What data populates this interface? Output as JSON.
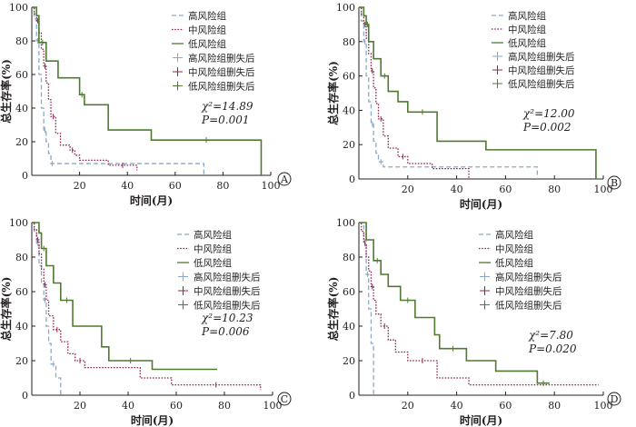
{
  "legend_labels": [
    "高风险组",
    "中风险组",
    "低风险组",
    "高风险组删失后",
    "中风险组删失后",
    "低风险组删失后"
  ],
  "colors": {
    "high": "#8aa8c8",
    "mid": "#8e2752",
    "low": "#4f7a2f",
    "axis": "#231f20"
  },
  "chart_data": [
    {
      "type": "line",
      "panel": "A",
      "xlabel": "时间(月)",
      "ylabel": "总生存率(%)",
      "xlim": [
        0,
        100
      ],
      "ylim": [
        0,
        100
      ],
      "xticks": [
        20,
        40,
        60,
        80,
        100
      ],
      "yticks": [
        0,
        20,
        40,
        60,
        80,
        100
      ],
      "stat": {
        "chi": "χ²=14.89",
        "p": "P=0.001"
      },
      "series": [
        {
          "name": "高风险组",
          "style": "dashed",
          "x": [
            0,
            1,
            2,
            3,
            4,
            5,
            6,
            7,
            8,
            9,
            72
          ],
          "y": [
            100,
            93,
            80,
            60,
            40,
            27,
            20,
            13,
            7,
            7,
            0
          ]
        },
        {
          "name": "中风险组",
          "style": "dotted",
          "x": [
            0,
            1,
            2,
            3,
            4,
            5,
            6,
            7,
            8,
            10,
            12,
            16,
            18,
            20,
            32,
            44
          ],
          "y": [
            100,
            96,
            92,
            85,
            75,
            65,
            55,
            45,
            35,
            25,
            18,
            15,
            12,
            9,
            6,
            3
          ]
        },
        {
          "name": "低风险组",
          "style": "solid",
          "x": [
            0,
            2,
            3,
            6,
            11,
            20,
            22,
            32,
            50,
            96
          ],
          "y": [
            100,
            95,
            79,
            68,
            58,
            48,
            42,
            27,
            21,
            0
          ]
        }
      ]
    },
    {
      "type": "line",
      "panel": "B",
      "xlabel": "时间(月)",
      "ylabel": "总生存率(%)",
      "xlim": [
        0,
        100
      ],
      "ylim": [
        0,
        100
      ],
      "xticks": [
        20,
        40,
        60,
        80,
        100
      ],
      "yticks": [
        0,
        20,
        40,
        60,
        80,
        100
      ],
      "stat": {
        "chi": "χ²=12.00",
        "p": "P=0.002"
      },
      "series": [
        {
          "name": "高风险组",
          "style": "dashed",
          "x": [
            0,
            1,
            2,
            3,
            4,
            5,
            6,
            7,
            8,
            10,
            73
          ],
          "y": [
            100,
            92,
            80,
            60,
            45,
            32,
            22,
            15,
            10,
            7,
            0
          ]
        },
        {
          "name": "中风险组",
          "style": "dotted",
          "x": [
            0,
            1,
            2,
            3,
            4,
            5,
            6,
            7,
            8,
            10,
            12,
            16,
            20,
            30,
            45
          ],
          "y": [
            100,
            96,
            90,
            82,
            73,
            63,
            53,
            44,
            35,
            25,
            18,
            13,
            9,
            6,
            0
          ]
        },
        {
          "name": "低风险组",
          "style": "solid",
          "x": [
            0,
            2,
            3,
            4,
            6,
            9,
            12,
            16,
            20,
            32,
            52,
            97
          ],
          "y": [
            100,
            95,
            90,
            80,
            70,
            60,
            51,
            45,
            39,
            22,
            17,
            0
          ]
        }
      ]
    },
    {
      "type": "line",
      "panel": "C",
      "xlabel": "时间(月)",
      "ylabel": "总生存率(%)",
      "xlim": [
        0,
        100
      ],
      "ylim": [
        0,
        100
      ],
      "xticks": [
        20,
        40,
        60,
        80,
        100
      ],
      "yticks": [
        0,
        20,
        40,
        60,
        80,
        100
      ],
      "stat": {
        "chi": "χ²=10.23",
        "p": "P=0.006"
      },
      "series": [
        {
          "name": "高风险组",
          "style": "dashed",
          "x": [
            0,
            1,
            2,
            3,
            4,
            5,
            6,
            7,
            8,
            10,
            12
          ],
          "y": [
            100,
            95,
            88,
            75,
            65,
            55,
            40,
            30,
            18,
            10,
            0
          ]
        },
        {
          "name": "中风险组",
          "style": "dotted",
          "x": [
            0,
            1,
            2,
            3,
            4,
            5,
            6,
            7,
            9,
            12,
            15,
            18,
            22,
            45,
            58,
            95
          ],
          "y": [
            100,
            96,
            90,
            82,
            73,
            64,
            55,
            46,
            38,
            31,
            24,
            20,
            16,
            10,
            6,
            3
          ]
        },
        {
          "name": "低风险组",
          "style": "solid",
          "x": [
            0,
            3,
            4,
            6,
            9,
            12,
            17,
            29,
            32,
            50,
            77
          ],
          "y": [
            100,
            94,
            85,
            75,
            65,
            55,
            40,
            28,
            20,
            15,
            15
          ]
        }
      ]
    },
    {
      "type": "line",
      "panel": "D",
      "xlabel": "时间(月)",
      "ylabel": "总生存率(%)",
      "xlim": [
        0,
        100
      ],
      "ylim": [
        0,
        100
      ],
      "xticks": [
        20,
        40,
        60,
        80,
        100
      ],
      "yticks": [
        0,
        20,
        40,
        60,
        80,
        100
      ],
      "stat": {
        "chi": "χ²=7.80",
        "p": "P=0.020"
      },
      "series": [
        {
          "name": "高风险组",
          "style": "dashed",
          "x": [
            0,
            2,
            3,
            4,
            5,
            6
          ],
          "y": [
            100,
            90,
            70,
            50,
            30,
            0
          ]
        },
        {
          "name": "中风险组",
          "style": "dotted",
          "x": [
            0,
            1,
            2,
            3,
            4,
            5,
            6,
            7,
            9,
            12,
            15,
            20,
            32,
            45,
            98
          ],
          "y": [
            100,
            95,
            88,
            80,
            72,
            63,
            55,
            47,
            40,
            32,
            25,
            20,
            10,
            6,
            6
          ]
        },
        {
          "name": "低风险组",
          "style": "solid",
          "x": [
            0,
            3,
            6,
            9,
            12,
            17,
            23,
            31,
            33,
            44,
            56,
            73,
            78
          ],
          "y": [
            100,
            90,
            78,
            70,
            63,
            55,
            45,
            35,
            27,
            20,
            14,
            7,
            7
          ]
        }
      ]
    }
  ]
}
